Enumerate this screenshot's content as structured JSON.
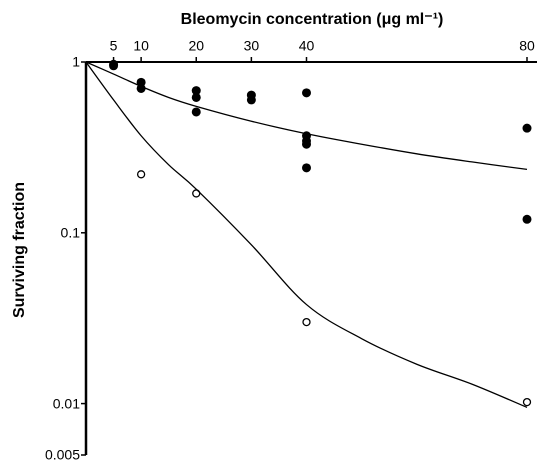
{
  "chart_data": {
    "type": "scatter",
    "title": "Bleomycin concentration (μg ml⁻¹)",
    "y_label": "Surviving fraction",
    "xlim": [
      0,
      80
    ],
    "xticks": [
      5,
      10,
      20,
      30,
      40,
      80
    ],
    "ylim": [
      0.005,
      1
    ],
    "yticks": [
      1,
      0.1,
      0.01,
      0.005
    ],
    "y_scale": "log",
    "x_axis_position": "top",
    "series": [
      {
        "mark": "filled",
        "color": "#000000",
        "x": [
          5,
          5,
          10,
          10,
          20,
          20,
          20,
          30,
          30,
          40,
          40,
          40,
          40,
          40,
          80,
          80
        ],
        "values": [
          0.97,
          0.95,
          0.76,
          0.7,
          0.68,
          0.62,
          0.51,
          0.64,
          0.6,
          0.66,
          0.37,
          0.345,
          0.33,
          0.24,
          0.41,
          0.12
        ]
      },
      {
        "mark": "open",
        "color": "#000000",
        "x": [
          10,
          20,
          40,
          80
        ],
        "values": [
          0.22,
          0.17,
          0.03,
          0.0102
        ]
      },
      {
        "mark": "line",
        "color": "#000000",
        "x": [
          0,
          5,
          10,
          15,
          20,
          30,
          40,
          50,
          60,
          70,
          80
        ],
        "values": [
          1,
          0.85,
          0.72,
          0.62,
          0.55,
          0.45,
          0.38,
          0.33,
          0.29,
          0.26,
          0.235
        ]
      },
      {
        "mark": "line",
        "color": "#000000",
        "x": [
          0,
          5,
          10,
          15,
          20,
          30,
          40,
          50,
          60,
          70,
          80
        ],
        "values": [
          1,
          0.6,
          0.37,
          0.25,
          0.18,
          0.085,
          0.038,
          0.024,
          0.017,
          0.013,
          0.0095
        ]
      }
    ]
  }
}
